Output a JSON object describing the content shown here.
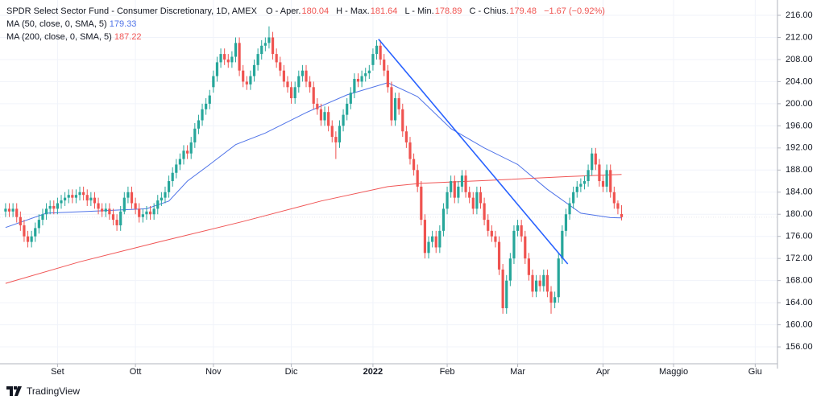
{
  "chart_data": {
    "type": "candlestick",
    "header": {
      "title": "SPDR Select Sector Fund - Consumer Discretionary, 1D, AMEX",
      "field_labels": [
        "O - Aper.",
        "H - Max.",
        "L - Min.",
        "C - Chius."
      ],
      "change_text": "−1.67 (−0.92%)"
    },
    "up_color": "#26a69a",
    "down_color": "#ef5350",
    "ohlc": [
      [
        180.5,
        182,
        179.5,
        181
      ],
      [
        181,
        182,
        179.5,
        180.5
      ],
      [
        180.5,
        182,
        179.5,
        181
      ],
      [
        181,
        182,
        178.5,
        179.5
      ],
      [
        179.5,
        180.5,
        177,
        178
      ],
      [
        178,
        179,
        175,
        176
      ],
      [
        176,
        177,
        174,
        175
      ],
      [
        175,
        177,
        174,
        176
      ],
      [
        176,
        178.5,
        175,
        177.5
      ],
      [
        177.5,
        180,
        176.5,
        179
      ],
      [
        179,
        181,
        178,
        180
      ],
      [
        180,
        182,
        179,
        181
      ],
      [
        181,
        182.5,
        180,
        181.5
      ],
      [
        181.5,
        182.5,
        180,
        181
      ],
      [
        181,
        183,
        180,
        182
      ],
      [
        182,
        183.5,
        181,
        182.5
      ],
      [
        182.5,
        184,
        181.5,
        183
      ],
      [
        183,
        184.5,
        182,
        183.5
      ],
      [
        183.5,
        184.5,
        182,
        183
      ],
      [
        183,
        184.5,
        182,
        183.5
      ],
      [
        183.5,
        185,
        182.5,
        184
      ],
      [
        184,
        185,
        182.5,
        183.5
      ],
      [
        183.5,
        184.5,
        181.5,
        182.5
      ],
      [
        182.5,
        184,
        181.5,
        183
      ],
      [
        183,
        184,
        181,
        182
      ],
      [
        182,
        183,
        180,
        181
      ],
      [
        181,
        182,
        179.5,
        180.5
      ],
      [
        180.5,
        182,
        179.5,
        181
      ],
      [
        181,
        182,
        179,
        180
      ],
      [
        180,
        181,
        178,
        179
      ],
      [
        179,
        180,
        177,
        178
      ],
      [
        178,
        181.5,
        177,
        180.5
      ],
      [
        180.5,
        184,
        180,
        183
      ],
      [
        183,
        185,
        182,
        184
      ],
      [
        184,
        185,
        181,
        182
      ],
      [
        182,
        183,
        180,
        181
      ],
      [
        181,
        182,
        178.5,
        179.5
      ],
      [
        179.5,
        181,
        178.5,
        180
      ],
      [
        180,
        181.5,
        179,
        180.5
      ],
      [
        180.5,
        181.5,
        179,
        180
      ],
      [
        180,
        182,
        179,
        181
      ],
      [
        181,
        183.5,
        180,
        182.5
      ],
      [
        182.5,
        184,
        181.5,
        183
      ],
      [
        183,
        185,
        182,
        184
      ],
      [
        184,
        187,
        183,
        186
      ],
      [
        186,
        188.5,
        185,
        187.5
      ],
      [
        187.5,
        190,
        186.5,
        189
      ],
      [
        189,
        191,
        188,
        190
      ],
      [
        190,
        192.5,
        189,
        191.5
      ],
      [
        191.5,
        192.5,
        190,
        191
      ],
      [
        191,
        194,
        190,
        193
      ],
      [
        193,
        196.5,
        192,
        195.5
      ],
      [
        195.5,
        198,
        194.5,
        197
      ],
      [
        197,
        200,
        196,
        199
      ],
      [
        199,
        201,
        198,
        200
      ],
      [
        200,
        202.5,
        199,
        201.5
      ],
      [
        203,
        206,
        202,
        205
      ],
      [
        205,
        208.5,
        204,
        207.5
      ],
      [
        207.5,
        210,
        206.5,
        209
      ],
      [
        209,
        210,
        207,
        208
      ],
      [
        208,
        209,
        206.5,
        207.5
      ],
      [
        207.5,
        209.5,
        206.5,
        208.5
      ],
      [
        208.5,
        212,
        207.5,
        211
      ],
      [
        211,
        212,
        205,
        206
      ],
      [
        206,
        207,
        203,
        204
      ],
      [
        204,
        205,
        202.5,
        203.5
      ],
      [
        203.5,
        206,
        202.5,
        205
      ],
      [
        205,
        208,
        204,
        207
      ],
      [
        207,
        210,
        206,
        209
      ],
      [
        209,
        211.5,
        208,
        210.5
      ],
      [
        210.5,
        212,
        209.5,
        211
      ],
      [
        211,
        214,
        210,
        212
      ],
      [
        212,
        213,
        208,
        209
      ],
      [
        209,
        210,
        206.5,
        207.5
      ],
      [
        207.5,
        208.5,
        205,
        206
      ],
      [
        206,
        207,
        203,
        204
      ],
      [
        204,
        205,
        202,
        203
      ],
      [
        203,
        204,
        200,
        201
      ],
      [
        201,
        204,
        200,
        203
      ],
      [
        203,
        206,
        202,
        205
      ],
      [
        205,
        207,
        204,
        206
      ],
      [
        206,
        207,
        203,
        204
      ],
      [
        204,
        205,
        202,
        203
      ],
      [
        203,
        204,
        199,
        200
      ],
      [
        200,
        201,
        198,
        199
      ],
      [
        199,
        200,
        196,
        197
      ],
      [
        197,
        199.5,
        196,
        198.5
      ],
      [
        198.5,
        199.5,
        195,
        196
      ],
      [
        196,
        197,
        193,
        194
      ],
      [
        194,
        195,
        190,
        193
      ],
      [
        193,
        197,
        192,
        196
      ],
      [
        196,
        199,
        195,
        198
      ],
      [
        198,
        201,
        197,
        200
      ],
      [
        200,
        203,
        199,
        202
      ],
      [
        202,
        205.5,
        201,
        204.5
      ],
      [
        204.5,
        205.5,
        203,
        204
      ],
      [
        204,
        206,
        203,
        205
      ],
      [
        205,
        206.5,
        204,
        205.5
      ],
      [
        205.5,
        207,
        204.5,
        206
      ],
      [
        207,
        210,
        206,
        209
      ],
      [
        209,
        211.5,
        208,
        210.5
      ],
      [
        210.5,
        211.5,
        207,
        208
      ],
      [
        208,
        209,
        205,
        206
      ],
      [
        206,
        207,
        202,
        203
      ],
      [
        203,
        204,
        196,
        197
      ],
      [
        197,
        202,
        196,
        201
      ],
      [
        201,
        202,
        198,
        199
      ],
      [
        199,
        200,
        194,
        195
      ],
      [
        195,
        196,
        192,
        193
      ],
      [
        193,
        194,
        189,
        190
      ],
      [
        190,
        191,
        187,
        188
      ],
      [
        188,
        189,
        184,
        185
      ],
      [
        185,
        186,
        178,
        179
      ],
      [
        179,
        180,
        172,
        173
      ],
      [
        173,
        176,
        172,
        175
      ],
      [
        175,
        177,
        174,
        176
      ],
      [
        176,
        177,
        173,
        174
      ],
      [
        174,
        178,
        173,
        177
      ],
      [
        177,
        182,
        176,
        181
      ],
      [
        181,
        185,
        180,
        184
      ],
      [
        184,
        187,
        183,
        186
      ],
      [
        186,
        187,
        182,
        183
      ],
      [
        183,
        186,
        182,
        185
      ],
      [
        185,
        188,
        184,
        187
      ],
      [
        187,
        188,
        183,
        184
      ],
      [
        184,
        185,
        182,
        183
      ],
      [
        183,
        184,
        180,
        181
      ],
      [
        181,
        185,
        180,
        184
      ],
      [
        184,
        185,
        181,
        182
      ],
      [
        182,
        183,
        178,
        179
      ],
      [
        179,
        180,
        176,
        177
      ],
      [
        177,
        178,
        175,
        176
      ],
      [
        176,
        177,
        174,
        175
      ],
      [
        175,
        176,
        169,
        170
      ],
      [
        170,
        171,
        162,
        163
      ],
      [
        163,
        169,
        162,
        168
      ],
      [
        168,
        173,
        167,
        172
      ],
      [
        172,
        178,
        171,
        177
      ],
      [
        177,
        179,
        176,
        178
      ],
      [
        178,
        179,
        175,
        176
      ],
      [
        176,
        177,
        171,
        172
      ],
      [
        172,
        173,
        168,
        169
      ],
      [
        169,
        170,
        165,
        166
      ],
      [
        166,
        169,
        165,
        168
      ],
      [
        168,
        169,
        166,
        167
      ],
      [
        167,
        170,
        166,
        169
      ],
      [
        169,
        170,
        165,
        166
      ],
      [
        166,
        167,
        162,
        164
      ],
      [
        164,
        166,
        163,
        165
      ],
      [
        165,
        173,
        164,
        172
      ],
      [
        172,
        178,
        171,
        177
      ],
      [
        177,
        181,
        176,
        180
      ],
      [
        180,
        183,
        179,
        182
      ],
      [
        182,
        185,
        181,
        184
      ],
      [
        184,
        186,
        183,
        185
      ],
      [
        185,
        186.5,
        184,
        185.5
      ],
      [
        185.5,
        187,
        184.5,
        186
      ],
      [
        186,
        189,
        185,
        188
      ],
      [
        188,
        192,
        187,
        191
      ],
      [
        191,
        192,
        188,
        189
      ],
      [
        189,
        190,
        185,
        186
      ],
      [
        186,
        187,
        184,
        185
      ],
      [
        185,
        189,
        184,
        188
      ],
      [
        188,
        189,
        183,
        184
      ],
      [
        184,
        185,
        181,
        182
      ],
      [
        182,
        182.5,
        180,
        181
      ],
      [
        180.04,
        181.64,
        178.89,
        179.48
      ]
    ],
    "series": [
      {
        "name": "MA (50, close, 0, SMA, 5)",
        "color": "#4f73e8",
        "x": [
          0,
          11,
          25,
          38,
          44,
          49,
          55,
          62,
          70,
          81,
          92,
          103,
          111,
          120,
          129,
          138,
          146,
          155,
          163,
          166
        ],
        "values": [
          177.6,
          180.2,
          180.6,
          181,
          182.4,
          186,
          189,
          192.6,
          194.7,
          198.4,
          201.6,
          203.8,
          201.3,
          195.5,
          192,
          189,
          184.5,
          180.2,
          179.4,
          179.33
        ]
      },
      {
        "name": "MA (200, close, 0, SMA, 5)",
        "color": "#f05555",
        "x": [
          0,
          20,
          42,
          64,
          85,
          103,
          112,
          129,
          151,
          166
        ],
        "values": [
          167.5,
          171.4,
          175.1,
          178.7,
          182.4,
          185,
          185.6,
          186.1,
          186.8,
          187.22
        ]
      }
    ],
    "trendline": {
      "color": "#2962ff",
      "x": [
        100.5,
        151.5
      ],
      "values": [
        211.7,
        171
      ]
    },
    "xlim": [
      -1.5,
      208
    ],
    "ylim": [
      152.95,
      218.77
    ],
    "xticks": [
      {
        "value": 14,
        "label": "Set"
      },
      {
        "value": 35,
        "label": "Ott"
      },
      {
        "value": 56,
        "label": "Nov"
      },
      {
        "value": 77,
        "label": "Dic"
      },
      {
        "value": 99,
        "label": "2022"
      },
      {
        "value": 119,
        "label": "Feb"
      },
      {
        "value": 138,
        "label": "Mar"
      },
      {
        "value": 161,
        "label": "Apr"
      },
      {
        "value": 180,
        "label": "Maggio"
      },
      {
        "value": 202,
        "label": "Giu"
      }
    ],
    "yticks": [
      {
        "value": 156,
        "label": "156.00"
      },
      {
        "value": 160,
        "label": "160.00"
      },
      {
        "value": 164,
        "label": "164.00"
      },
      {
        "value": 168,
        "label": "168.00"
      },
      {
        "value": 172,
        "label": "172.00"
      },
      {
        "value": 176,
        "label": "176.00"
      },
      {
        "value": 180,
        "label": "180.00"
      },
      {
        "value": 184,
        "label": "184.00"
      },
      {
        "value": 188,
        "label": "188.00"
      },
      {
        "value": 192,
        "label": "192.00"
      },
      {
        "value": 196,
        "label": "196.00"
      },
      {
        "value": 200,
        "label": "200.00"
      },
      {
        "value": 204,
        "label": "204.00"
      },
      {
        "value": 208,
        "label": "208.00"
      },
      {
        "value": 212,
        "label": "212.00"
      },
      {
        "value": 216,
        "label": "216.00"
      }
    ],
    "grid": true,
    "branding": "TradingView"
  }
}
